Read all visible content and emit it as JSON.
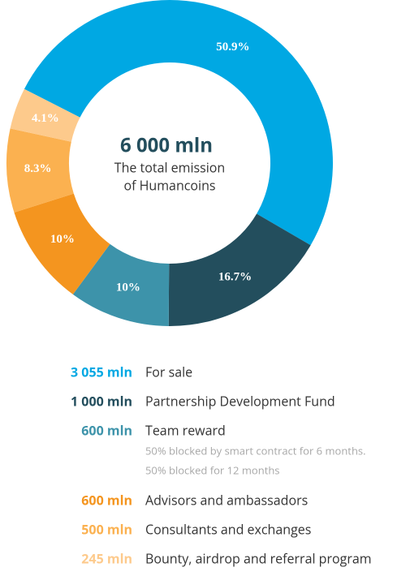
{
  "chart_data": {
    "type": "donut",
    "title": "6 000 mln",
    "subtitle": [
      "The total emission",
      "of Humancoins"
    ],
    "categories": [
      "For sale",
      "Partnership Development Fund",
      "Team reward",
      "Advisors and ambassadors",
      "Consultants and exchanges",
      "Bounty, airdrop and referral program"
    ],
    "values": [
      50.9,
      16.7,
      10,
      10,
      8.3,
      4.1
    ],
    "value_labels": [
      "50.9%",
      "16.7%",
      "10%",
      "10%",
      "8.3%",
      "4.1%"
    ],
    "colors": [
      "#00a8e3",
      "#234e5d",
      "#3d93aa",
      "#f4951f",
      "#fbb150",
      "#fdca8c"
    ]
  },
  "legend": [
    {
      "amount": "3 055 mln"
    },
    {
      "amount": "1 000 mln"
    },
    {
      "amount": "600 mln",
      "note": [
        "50% blocked by smart contract for 6 months.",
        "50% blocked for 12 months"
      ]
    },
    {
      "amount": "600 mln"
    },
    {
      "amount": "500 mln"
    },
    {
      "amount": "245 mln"
    }
  ]
}
